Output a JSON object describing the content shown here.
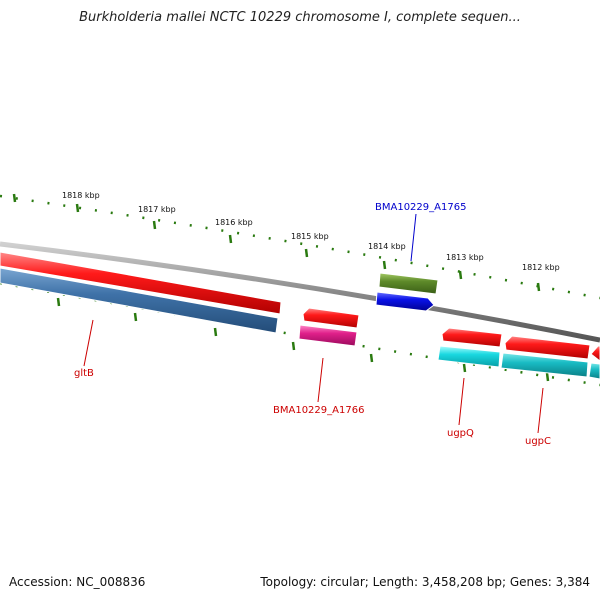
{
  "title": "Burkholderia mallei NCTC 10229 chromosome I, complete sequen...",
  "footer": {
    "accession": "Accession: NC_008836",
    "summary": "Topology: circular; Length: 3,458,208 bp; Genes: 3,384"
  },
  "ticks": [
    "1818 kbp",
    "1817 kbp",
    "1816 kbp",
    "1815 kbp",
    "1814 kbp",
    "1813 kbp",
    "1812 kbp"
  ],
  "genes": {
    "gltB": "gltB",
    "bma1766": "BMA10229_A1766",
    "bma1765": "BMA10229_A1765",
    "ugpQ": "ugpQ",
    "ugpC": "ugpC"
  },
  "colors": {
    "backbone": "#8a8a8a",
    "cds_forward": "#e8121a",
    "cds_reverse": "#3f72a8",
    "magenta": "#e0208a",
    "olive": "#5e8a2a",
    "blue": "#0a12e8",
    "cyan": "#1ad8e0",
    "tick_green": "#2a7a10",
    "label_red": "#cc0000",
    "label_blue": "#0000cc"
  }
}
